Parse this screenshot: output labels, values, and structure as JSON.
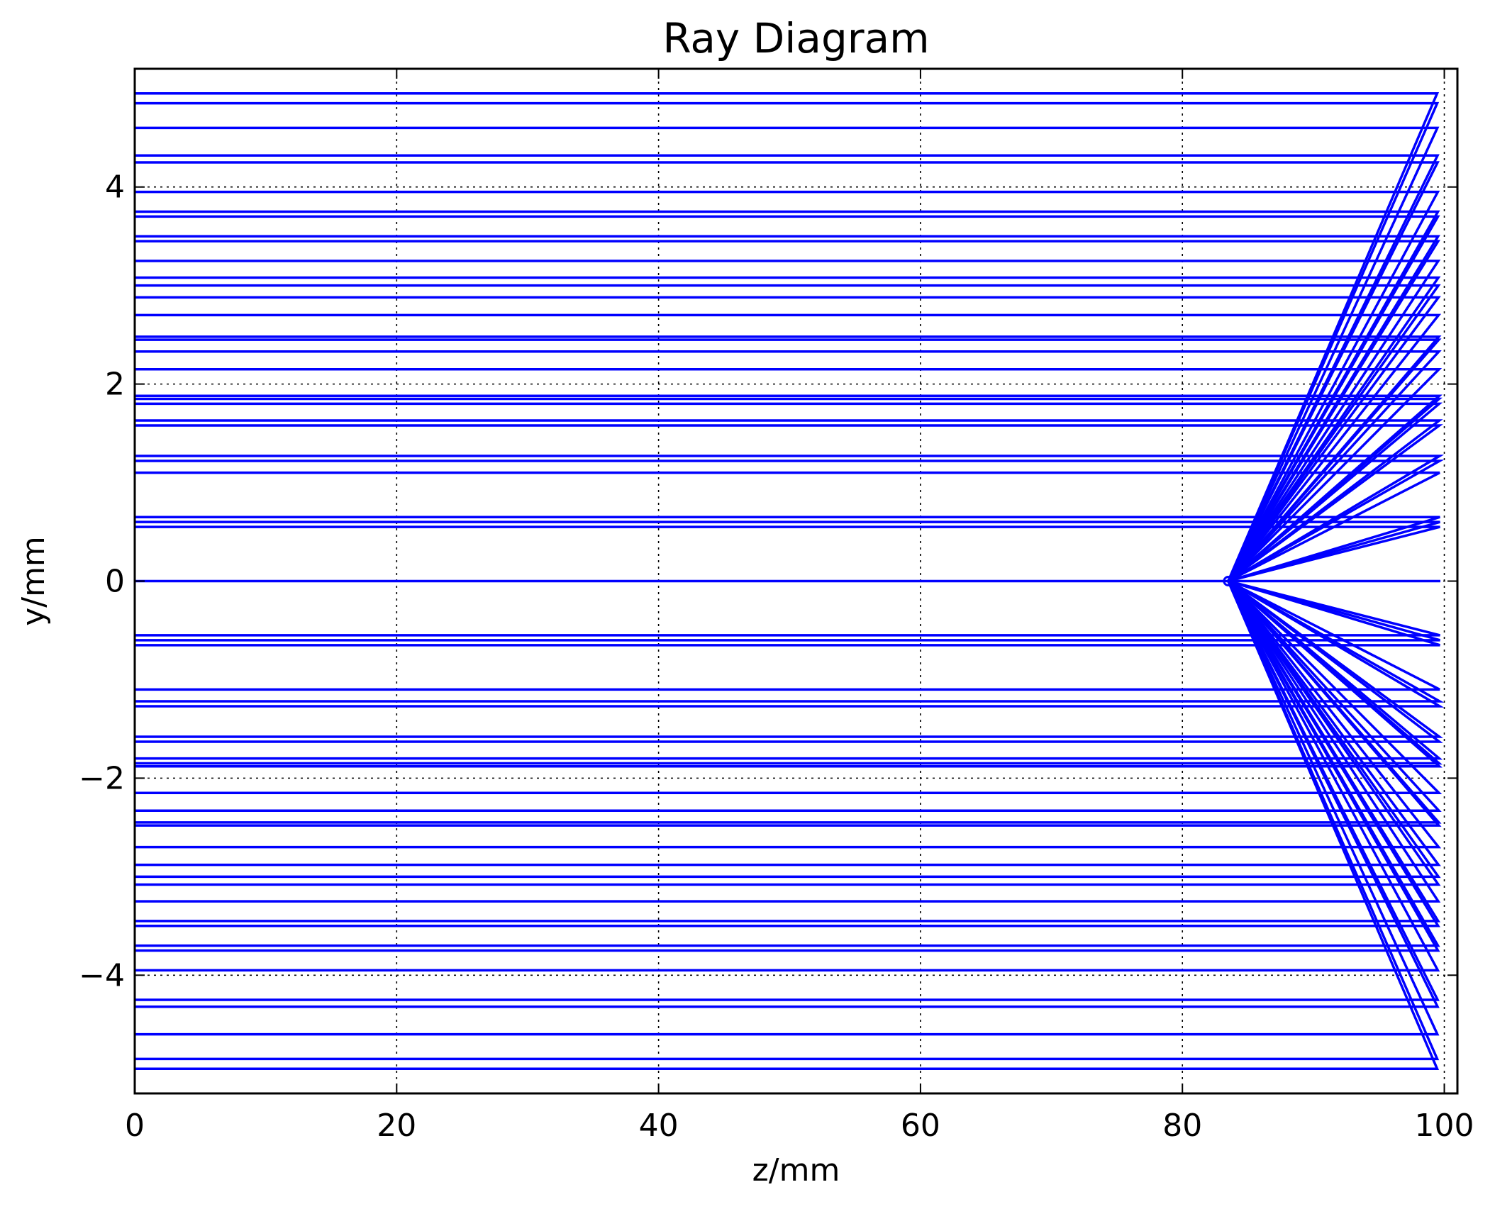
{
  "chart_data": {
    "type": "line",
    "title": "Ray Diagram",
    "xlabel": "z/mm",
    "ylabel": "y/mm",
    "xlim": [
      0,
      101
    ],
    "ylim": [
      -5.2,
      5.2
    ],
    "xticks": [
      0,
      20,
      40,
      60,
      80,
      100
    ],
    "yticks": [
      -4,
      -2,
      0,
      2,
      4
    ],
    "xtick_labels": [
      "0",
      "20",
      "40",
      "60",
      "80",
      "100"
    ],
    "ytick_labels": [
      "−4",
      "−2",
      "0",
      "2",
      "4"
    ],
    "grid": "dotted",
    "line_color": "#0000ff",
    "surface_z": 99.7,
    "focus_z": 83.5,
    "focus_y": 0,
    "ray_heights": [
      4.95,
      4.85,
      4.6,
      4.32,
      4.25,
      3.95,
      3.75,
      3.7,
      3.5,
      3.45,
      3.25,
      3.08,
      3.0,
      2.88,
      2.7,
      2.48,
      2.45,
      2.33,
      2.15,
      1.88,
      1.85,
      1.8,
      1.63,
      1.58,
      1.27,
      1.22,
      1.1,
      0.65,
      0.6,
      0.55,
      0.0,
      -0.55,
      -0.6,
      -0.65,
      -1.1,
      -1.22,
      -1.27,
      -1.58,
      -1.63,
      -1.8,
      -1.85,
      -1.88,
      -2.15,
      -2.33,
      -2.45,
      -2.48,
      -2.7,
      -2.88,
      -3.0,
      -3.08,
      -3.25,
      -3.45,
      -3.5,
      -3.7,
      -3.75,
      -3.95,
      -4.25,
      -4.32,
      -4.6,
      -4.85,
      -4.95
    ]
  }
}
